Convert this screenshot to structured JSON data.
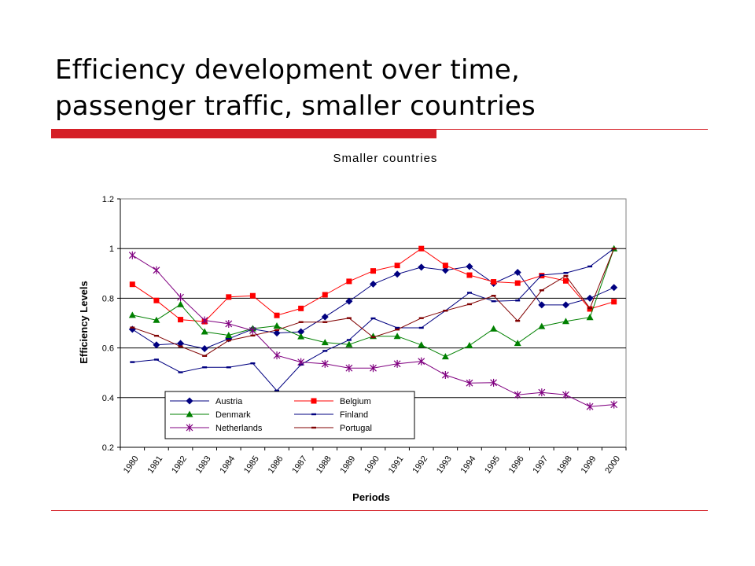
{
  "slide": {
    "title_line1": "Efficiency development over time,",
    "title_line2": "passenger traffic, smaller countries",
    "accent_color": "#d51f26"
  },
  "chart_data": {
    "type": "line",
    "title": "Smaller countries",
    "xlabel": "Periods",
    "ylabel": "Efficiency Levels",
    "categories": [
      "1980",
      "1981",
      "1982",
      "1983",
      "1984",
      "1985",
      "1986",
      "1987",
      "1988",
      "1989",
      "1990",
      "1991",
      "1992",
      "1993",
      "1994",
      "1995",
      "1996",
      "1997",
      "1998",
      "1999",
      "2000"
    ],
    "ylim": [
      0.2,
      1.2
    ],
    "yticks": [
      "0.2",
      "0.4",
      "0.6",
      "0.8",
      "1",
      "1.2"
    ],
    "grid": "horizontal",
    "legend_position": "bottom-left",
    "series": [
      {
        "name": "Austria",
        "color": "#000080",
        "marker": "diamond",
        "values": [
          0.675,
          0.612,
          0.618,
          0.597,
          0.637,
          0.676,
          0.66,
          0.665,
          0.725,
          0.788,
          0.857,
          0.897,
          0.925,
          0.913,
          0.928,
          0.86,
          0.904,
          0.773,
          0.773,
          0.8,
          0.843
        ]
      },
      {
        "name": "Belgium",
        "color": "#ff0000",
        "marker": "square",
        "values": [
          0.856,
          0.791,
          0.714,
          0.706,
          0.805,
          0.81,
          0.731,
          0.759,
          0.814,
          0.868,
          0.91,
          0.932,
          1.0,
          0.932,
          0.893,
          0.866,
          0.861,
          0.891,
          0.87,
          0.757,
          0.786
        ]
      },
      {
        "name": "Denmark",
        "color": "#008000",
        "marker": "triangle",
        "values": [
          0.732,
          0.712,
          0.775,
          0.665,
          0.651,
          0.678,
          0.689,
          0.646,
          0.622,
          0.614,
          0.647,
          0.647,
          0.612,
          0.565,
          0.61,
          0.677,
          0.619,
          0.687,
          0.707,
          0.723,
          1.0
        ]
      },
      {
        "name": "Finland",
        "color": "#000080",
        "marker": "dash",
        "values": [
          0.543,
          0.553,
          0.502,
          0.522,
          0.522,
          0.538,
          0.428,
          0.533,
          0.588,
          0.632,
          0.719,
          0.681,
          0.681,
          0.75,
          0.822,
          0.788,
          0.791,
          0.893,
          0.902,
          0.928,
          1.0
        ]
      },
      {
        "name": "Netherlands",
        "color": "#800080",
        "marker": "star",
        "values": [
          0.973,
          0.913,
          0.804,
          0.711,
          0.697,
          0.67,
          0.57,
          0.543,
          0.536,
          0.519,
          0.519,
          0.536,
          0.546,
          0.491,
          0.459,
          0.46,
          0.411,
          0.421,
          0.411,
          0.364,
          0.372
        ]
      },
      {
        "name": "Portugal",
        "color": "#800000",
        "marker": "dash",
        "values": [
          0.682,
          0.649,
          0.606,
          0.568,
          0.63,
          0.65,
          0.672,
          0.704,
          0.704,
          0.72,
          0.643,
          0.674,
          0.72,
          0.75,
          0.776,
          0.81,
          0.709,
          0.832,
          0.89,
          0.76,
          1.0
        ]
      }
    ]
  }
}
